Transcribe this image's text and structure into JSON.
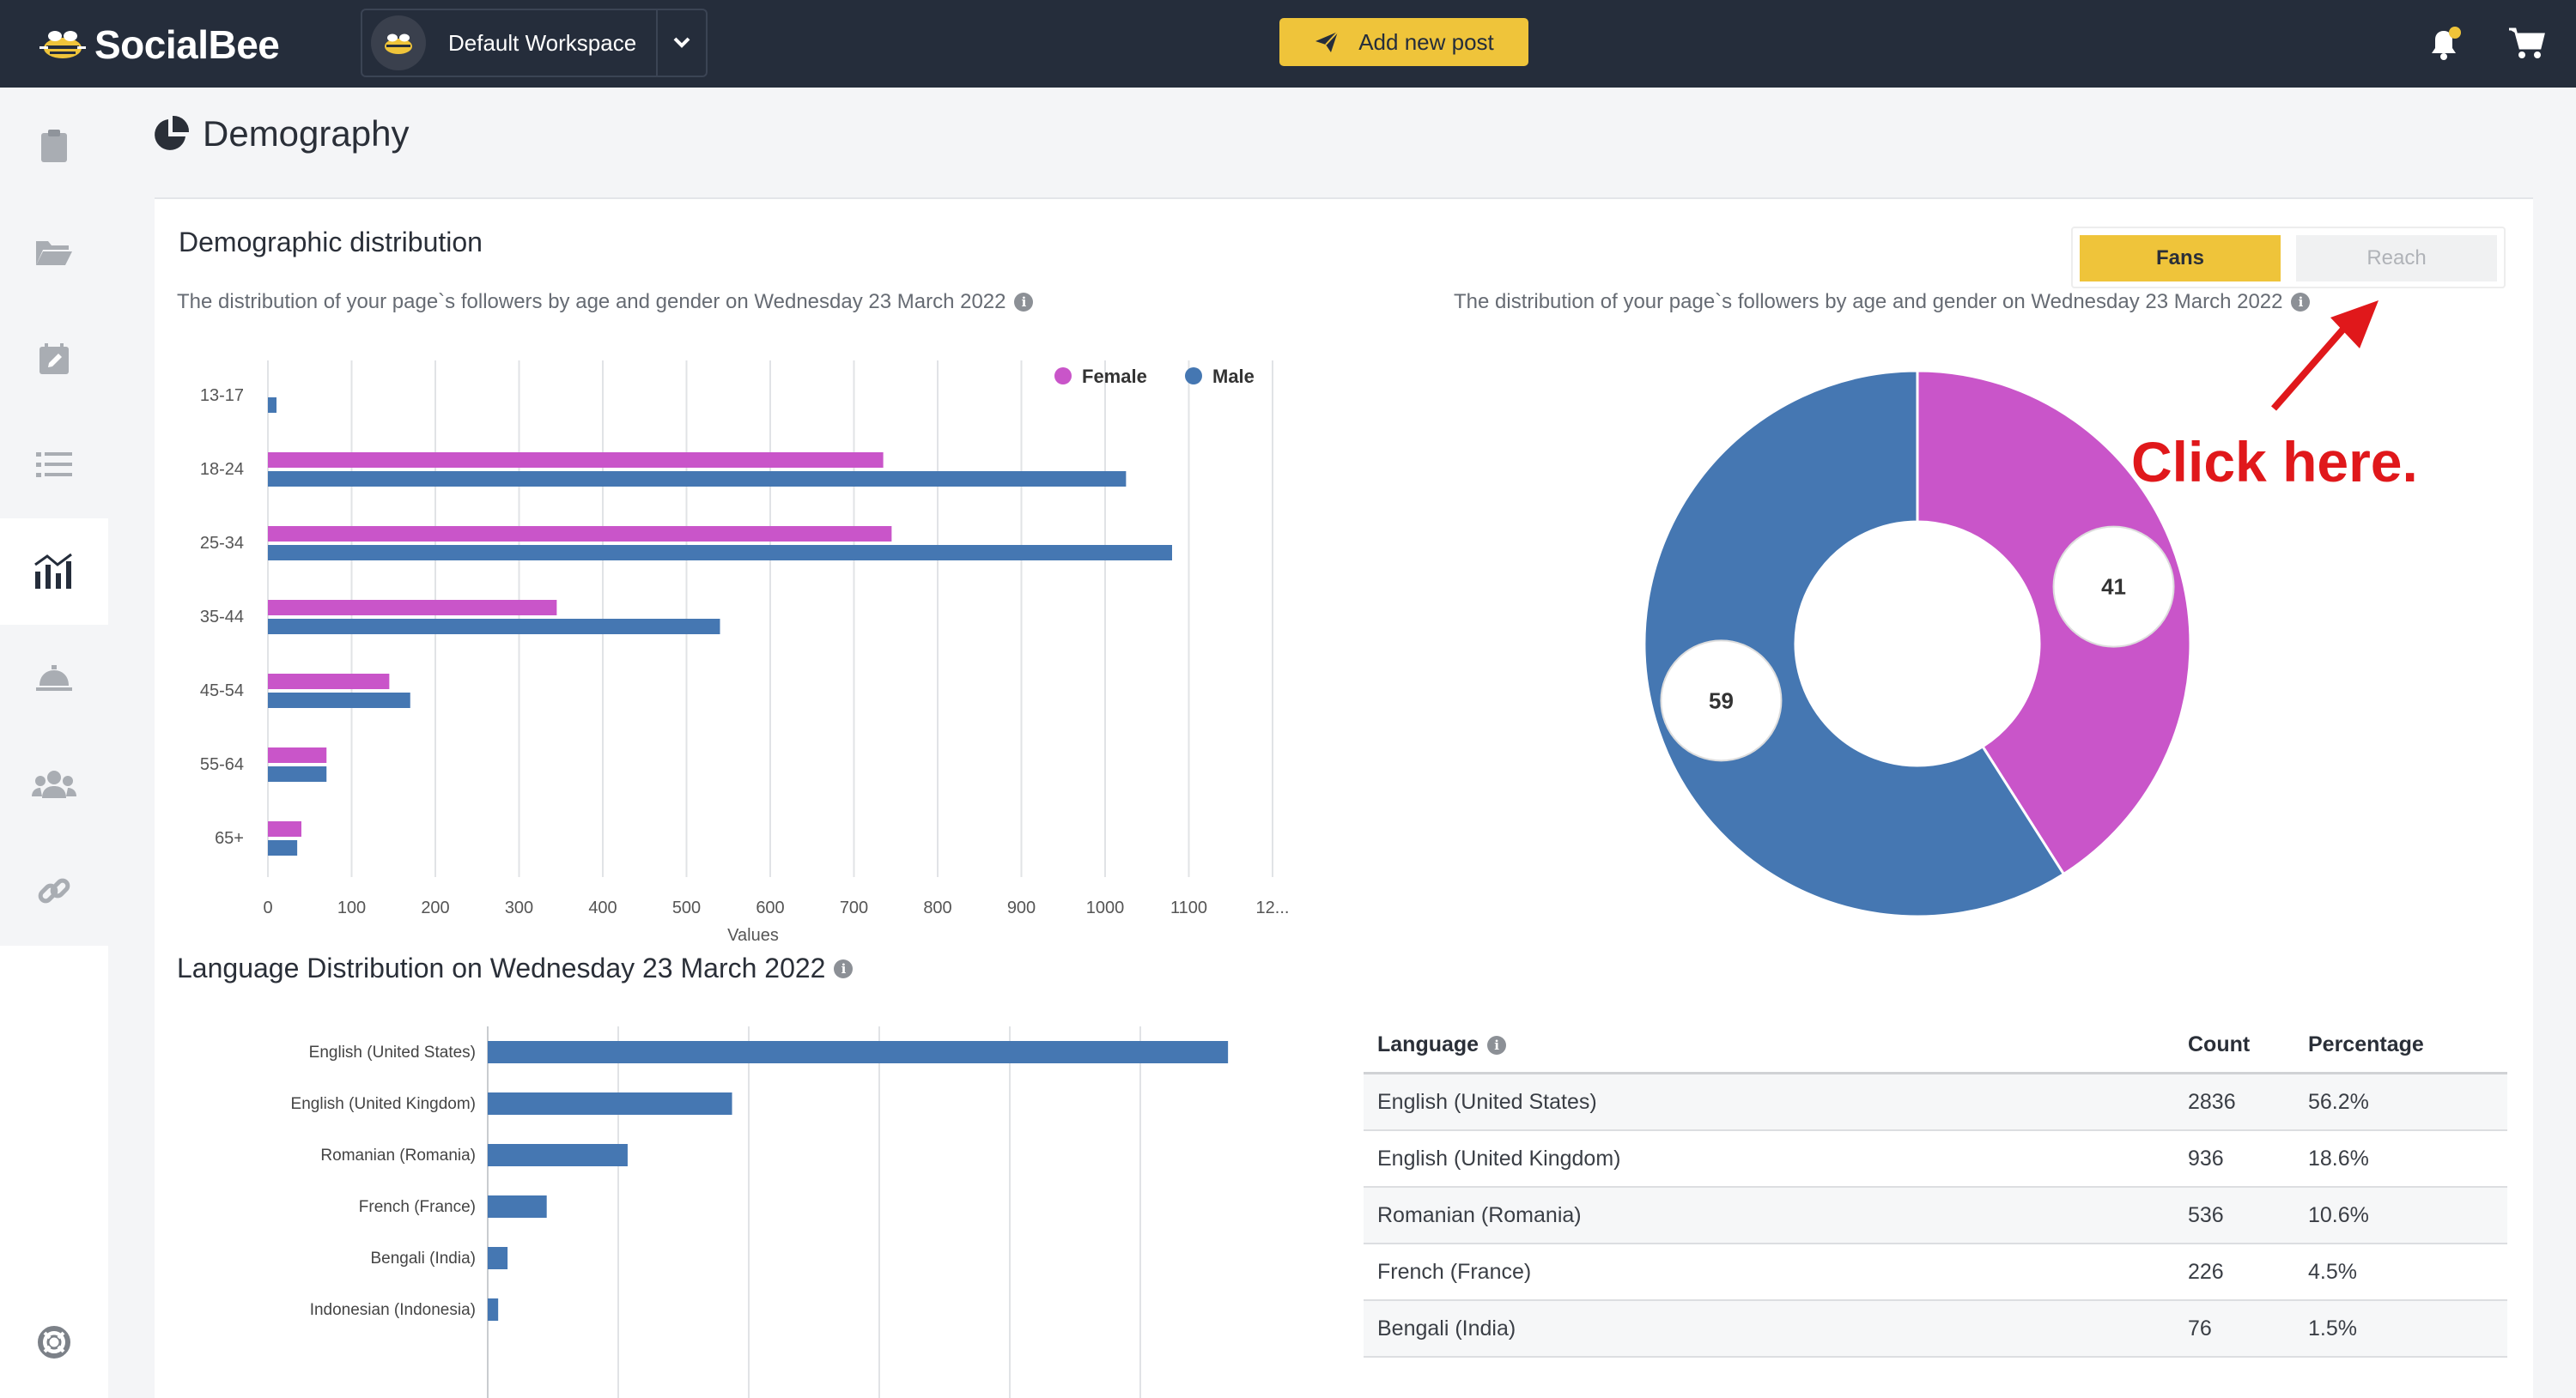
{
  "app": {
    "brand": "SocialBee",
    "workspace": "Default Workspace",
    "add_post": "Add new post"
  },
  "colors": {
    "topbar": "#252d3b",
    "accent": "#efc43a",
    "female": "#c955c9",
    "male": "#4577b2",
    "annotation": "#e0181b"
  },
  "sidebar": {
    "items": [
      {
        "icon": "clipboard-icon"
      },
      {
        "icon": "folder-icon"
      },
      {
        "icon": "calendar-edit-icon"
      },
      {
        "icon": "list-icon"
      },
      {
        "icon": "analytics-chart-icon",
        "active": true
      },
      {
        "icon": "concierge-bell-icon"
      },
      {
        "icon": "users-group-icon"
      },
      {
        "icon": "link-icon"
      },
      {
        "icon": "lifebuoy-icon"
      }
    ]
  },
  "page": {
    "title": "Demography"
  },
  "demographic": {
    "title": "Demographic distribution",
    "subtitle_left": "The distribution of your page`s followers by age and gender on Wednesday 23 March 2022",
    "subtitle_right": "The distribution of your page`s followers by age and gender on Wednesday 23 March 2022",
    "toggle": {
      "fans": "Fans",
      "reach": "Reach"
    }
  },
  "annotation": {
    "text": "Click here."
  },
  "language": {
    "title": "Language Distribution on Wednesday 23 March 2022",
    "table": {
      "headers": {
        "language": "Language",
        "count": "Count",
        "percentage": "Percentage"
      },
      "rows": [
        {
          "language": "English (United States)",
          "count": "2836",
          "percentage": "56.2%"
        },
        {
          "language": "English (United Kingdom)",
          "count": "936",
          "percentage": "18.6%"
        },
        {
          "language": "Romanian (Romania)",
          "count": "536",
          "percentage": "10.6%"
        },
        {
          "language": "French (France)",
          "count": "226",
          "percentage": "4.5%"
        },
        {
          "language": "Bengali (India)",
          "count": "76",
          "percentage": "1.5%"
        }
      ]
    }
  },
  "chart_data": [
    {
      "type": "bar",
      "orientation": "horizontal",
      "categories": [
        "13-17",
        "18-24",
        "25-34",
        "35-44",
        "45-54",
        "55-64",
        "65+"
      ],
      "series": [
        {
          "name": "Female",
          "color": "#c955c9",
          "values": [
            0,
            735,
            745,
            345,
            145,
            70,
            40
          ]
        },
        {
          "name": "Male",
          "color": "#4577b2",
          "values": [
            10,
            1025,
            1080,
            540,
            170,
            70,
            35
          ]
        }
      ],
      "x_ticks": [
        "0",
        "100",
        "200",
        "300",
        "400",
        "500",
        "600",
        "700",
        "800",
        "900",
        "1000",
        "1100",
        "12..."
      ],
      "xlabel": "Values",
      "xlim": [
        0,
        1200
      ],
      "grid": true,
      "legend": "top-right"
    },
    {
      "type": "pie",
      "donut": true,
      "slices": [
        {
          "label": "41",
          "value": 41,
          "color": "#c955c9"
        },
        {
          "label": "59",
          "value": 59,
          "color": "#4577b2"
        }
      ]
    },
    {
      "type": "bar",
      "orientation": "horizontal",
      "categories": [
        "English (United States)",
        "English (United Kingdom)",
        "Romanian (Romania)",
        "French (France)",
        "Bengali (India)",
        "Indonesian (Indonesia)"
      ],
      "values": [
        2836,
        936,
        536,
        226,
        76,
        40
      ],
      "xlim": [
        0,
        3000
      ],
      "grid": true
    }
  ]
}
